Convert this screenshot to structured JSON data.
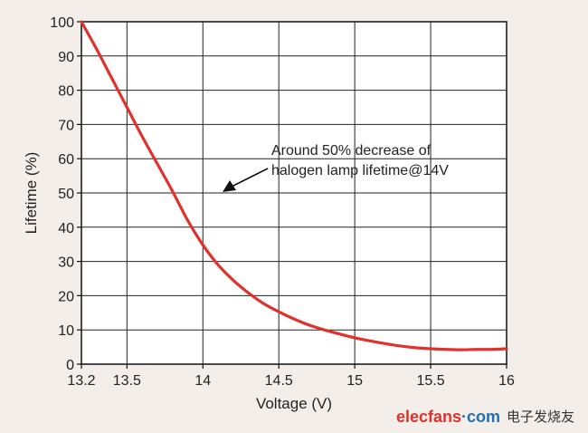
{
  "chart_data": {
    "type": "line",
    "title": "",
    "xlabel": "Voltage (V)",
    "ylabel": "Lifetime (%)",
    "xlim": [
      13.2,
      16
    ],
    "ylim": [
      0,
      100
    ],
    "x_ticks": [
      13.2,
      13.5,
      14,
      14.5,
      15,
      15.5,
      16
    ],
    "x_tick_labels": [
      "13.2",
      "13.5",
      "14",
      "14.5",
      "15",
      "15.5",
      "16"
    ],
    "y_ticks": [
      0,
      10,
      20,
      30,
      40,
      50,
      60,
      70,
      80,
      90,
      100
    ],
    "y_tick_labels": [
      "0",
      "10",
      "20",
      "30",
      "40",
      "50",
      "60",
      "70",
      "80",
      "90",
      "100"
    ],
    "grid": true,
    "series": [
      {
        "color": "#e0312c",
        "x": [
          13.2,
          13.3,
          13.4,
          13.5,
          13.6,
          13.7,
          13.8,
          13.9,
          14.0,
          14.1,
          14.2,
          14.3,
          14.4,
          14.5,
          14.6,
          14.7,
          14.8,
          14.9,
          15.0,
          15.1,
          15.2,
          15.3,
          15.4,
          15.5,
          15.6,
          15.7,
          15.8,
          15.9,
          16.0
        ],
        "y": [
          100,
          92,
          83.5,
          75,
          66.5,
          58.5,
          50.5,
          42,
          34.8,
          29,
          24.5,
          20.8,
          17.7,
          15.3,
          13.2,
          11.4,
          10.0,
          8.8,
          7.7,
          6.8,
          6.0,
          5.3,
          4.8,
          4.5,
          4.3,
          4.2,
          4.3,
          4.3,
          4.5
        ]
      }
    ],
    "annotations": [
      {
        "lines": [
          "Around 50% decrease of",
          "halogen lamp lifetime@14V"
        ],
        "arrow_to": {
          "x": 14.0,
          "y": 49
        }
      }
    ]
  },
  "watermark": {
    "brand": "elecfans",
    "dot": "·",
    "domain": "com",
    "cn": "电子发烧友",
    "color_primary": "#e0312c",
    "color_secondary": "#1f6fb2"
  }
}
